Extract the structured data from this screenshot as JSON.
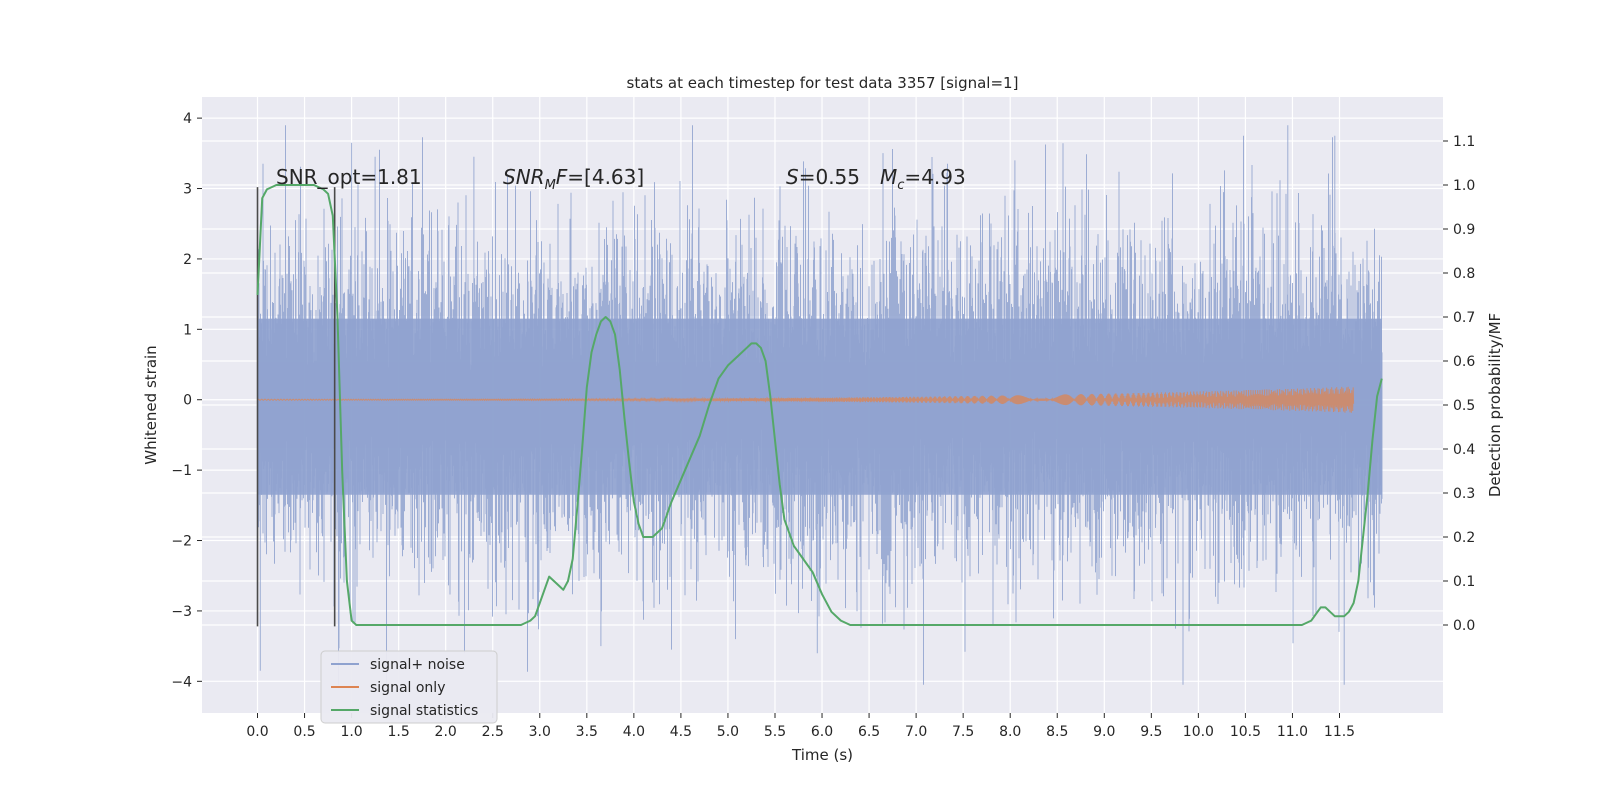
{
  "chart_data": {
    "type": "line",
    "title": "stats at each timestep for test data 3357 [signal=1]",
    "xlabel": "Time (s)",
    "ylabel": "Whitened strain",
    "y2label": "Detection probability/MF",
    "xlim": [
      -0.59,
      12.6
    ],
    "ylim": [
      -4.45,
      4.3
    ],
    "y2lim": [
      -0.2,
      1.2
    ],
    "x_ticks": [
      "0.0",
      "0.5",
      "1.0",
      "1.5",
      "2.0",
      "2.5",
      "3.0",
      "3.5",
      "4.0",
      "4.5",
      "5.0",
      "5.5",
      "6.0",
      "6.5",
      "7.0",
      "7.5",
      "8.0",
      "8.5",
      "9.0",
      "9.5",
      "10.0",
      "10.5",
      "11.0",
      "11.5"
    ],
    "y_ticks": [
      "−4",
      "−3",
      "−2",
      "−1",
      "0",
      "1",
      "2",
      "3",
      "4"
    ],
    "y2_ticks": [
      "0.0",
      "0.1",
      "0.2",
      "0.3",
      "0.4",
      "0.5",
      "0.6",
      "0.7",
      "0.8",
      "0.9",
      "1.0",
      "1.1"
    ],
    "grid": true,
    "legend_position": "lower-left",
    "colors": {
      "background": "#eaeaf2",
      "grid": "#ffffff",
      "noise": "#8fa2cf",
      "signal": "#dd8452",
      "stats": "#55a868",
      "vline": "#4a4a4a"
    },
    "annotations": [
      {
        "prefix": "SNR_opt=",
        "value": "1.81"
      },
      {
        "symbol": "SNR",
        "sub": "M",
        "tail": "F=",
        "value": "[4.63]"
      },
      {
        "symbol": "S",
        "tail": "=",
        "value": "0.55"
      },
      {
        "symbol": "M",
        "sub": "c",
        "tail": "=",
        "value": "4.93"
      }
    ],
    "vlines": [
      0.0,
      0.82
    ],
    "series": [
      {
        "name": "signal+ noise",
        "kind": "noise",
        "x_range": [
          0.0,
          11.95
        ],
        "band_sigma": 1.0,
        "peak_min": -4.05,
        "peak_max": 3.9
      },
      {
        "name": "signal only",
        "kind": "chirp",
        "x_range": [
          0.0,
          11.65
        ],
        "max_amplitude": 0.18
      },
      {
        "name": "signal statistics",
        "kind": "line",
        "axis": "right",
        "x": [
          0.0,
          0.05,
          0.1,
          0.2,
          0.3,
          0.4,
          0.5,
          0.6,
          0.7,
          0.75,
          0.8,
          0.85,
          0.9,
          0.95,
          1.0,
          1.05,
          1.1,
          1.5,
          2.0,
          2.5,
          2.8,
          2.9,
          2.95,
          3.0,
          3.05,
          3.1,
          3.15,
          3.2,
          3.25,
          3.3,
          3.35,
          3.4,
          3.45,
          3.5,
          3.55,
          3.6,
          3.65,
          3.7,
          3.75,
          3.8,
          3.85,
          3.9,
          3.95,
          4.0,
          4.05,
          4.1,
          4.15,
          4.2,
          4.3,
          4.4,
          4.5,
          4.6,
          4.7,
          4.8,
          4.9,
          5.0,
          5.1,
          5.2,
          5.25,
          5.3,
          5.35,
          5.4,
          5.45,
          5.5,
          5.55,
          5.6,
          5.7,
          5.8,
          5.9,
          6.0,
          6.1,
          6.2,
          6.3,
          6.5,
          7.0,
          7.5,
          8.0,
          8.3,
          8.5,
          9.0,
          10.0,
          11.0,
          11.1,
          11.2,
          11.3,
          11.35,
          11.4,
          11.45,
          11.5,
          11.55,
          11.6,
          11.65,
          11.7,
          11.75,
          11.8,
          11.85,
          11.9,
          11.95
        ],
        "y": [
          0.75,
          0.97,
          0.99,
          1.0,
          1.0,
          1.0,
          1.0,
          1.0,
          0.99,
          0.98,
          0.93,
          0.7,
          0.35,
          0.1,
          0.01,
          0.0,
          0.0,
          0.0,
          0.0,
          0.0,
          0.0,
          0.01,
          0.02,
          0.05,
          0.08,
          0.11,
          0.1,
          0.09,
          0.08,
          0.1,
          0.15,
          0.27,
          0.4,
          0.54,
          0.62,
          0.66,
          0.69,
          0.7,
          0.69,
          0.66,
          0.58,
          0.47,
          0.37,
          0.28,
          0.23,
          0.2,
          0.2,
          0.2,
          0.22,
          0.28,
          0.33,
          0.38,
          0.43,
          0.5,
          0.56,
          0.59,
          0.61,
          0.63,
          0.64,
          0.64,
          0.63,
          0.6,
          0.52,
          0.42,
          0.32,
          0.24,
          0.18,
          0.15,
          0.12,
          0.07,
          0.03,
          0.01,
          0.0,
          0.0,
          0.0,
          0.0,
          0.0,
          0.0,
          0.0,
          0.0,
          0.0,
          0.0,
          0.0,
          0.01,
          0.04,
          0.04,
          0.03,
          0.02,
          0.02,
          0.02,
          0.03,
          0.05,
          0.1,
          0.2,
          0.3,
          0.42,
          0.52,
          0.56
        ]
      }
    ]
  }
}
